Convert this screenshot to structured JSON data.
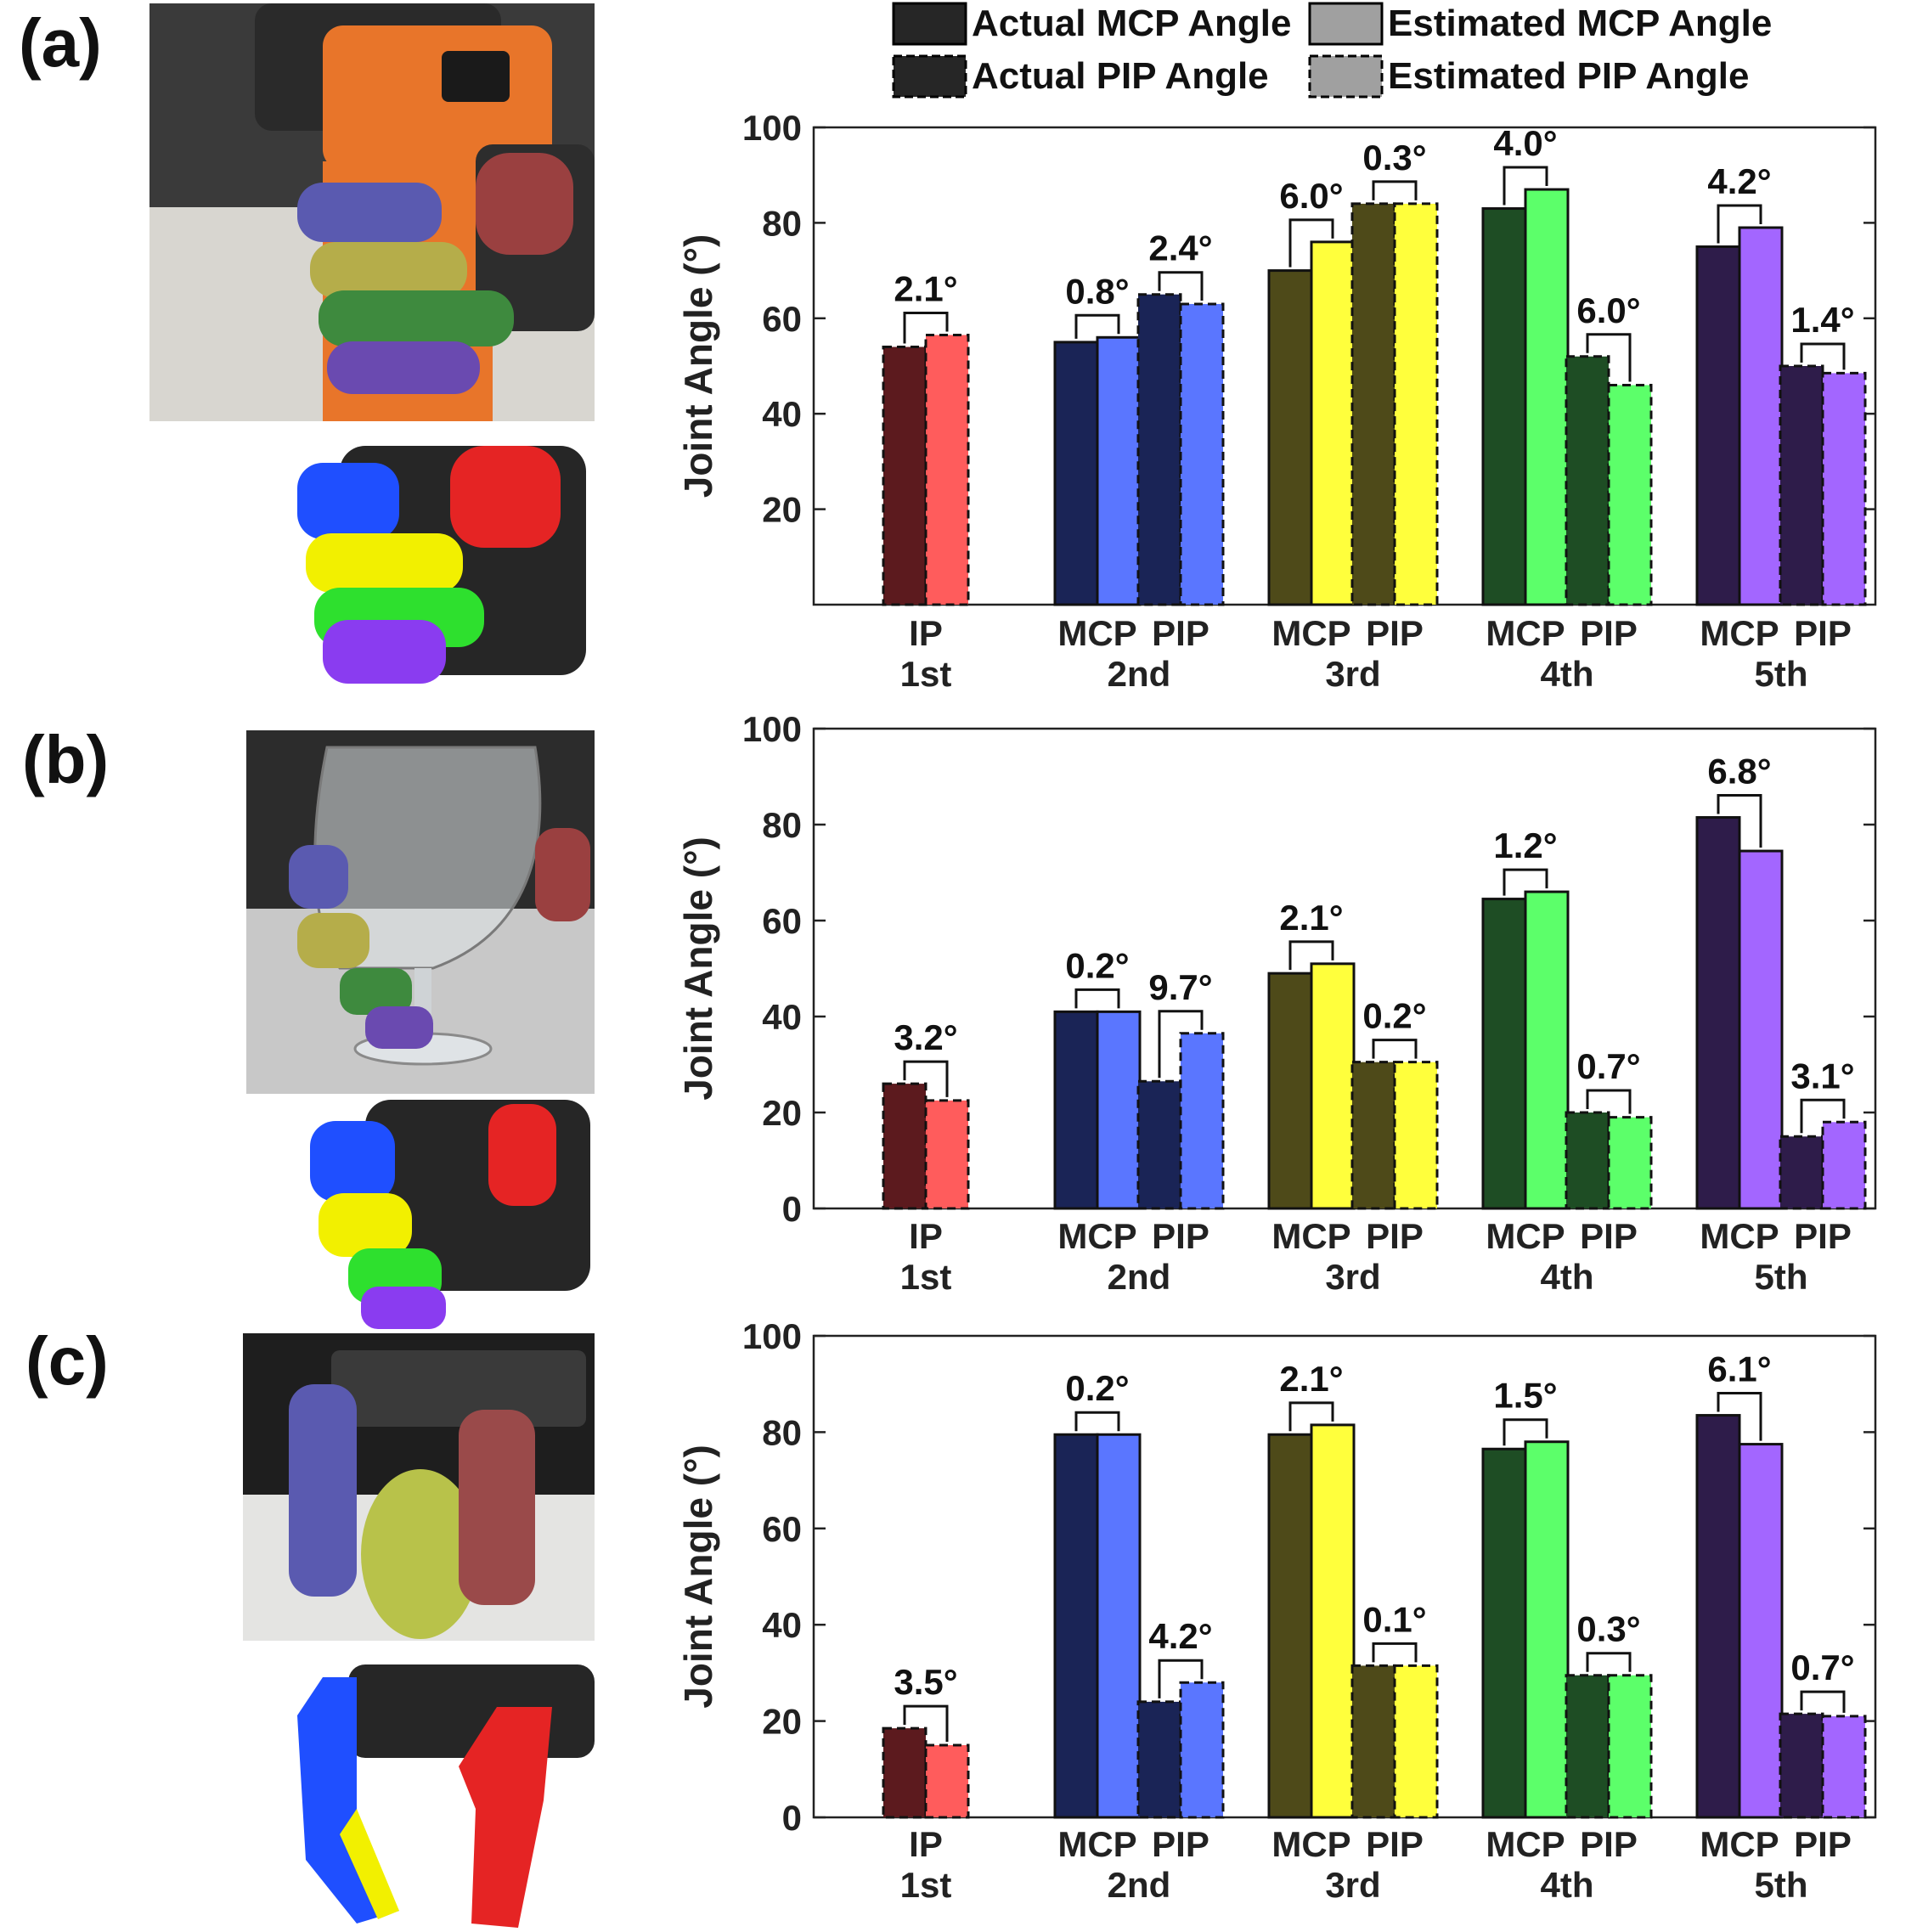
{
  "legend": {
    "actual_mcp": "Actual MCP Angle",
    "estimated_mcp": "Estimated MCP Angle",
    "actual_pip": "Actual PIP Angle",
    "estimated_pip": "Estimated PIP Angle"
  },
  "colors": {
    "first": {
      "actual": "#5c1a1e",
      "estimated": "#ff5c5c"
    },
    "second": {
      "actual": "#1a2456",
      "estimated": "#5a76ff"
    },
    "third": {
      "actual": "#4e4a19",
      "estimated": "#ffff3c"
    },
    "fourth": {
      "actual": "#1e4d24",
      "estimated": "#5cff6a"
    },
    "fifth": {
      "actual": "#2e1c4a",
      "estimated": "#a366ff"
    }
  },
  "photos": {
    "a": "drill-grasp-photo",
    "b": "wine-glass-grasp-photo",
    "c": "pear-grasp-photo"
  },
  "chart_data": [
    {
      "panel": "(a)",
      "type": "bar",
      "ylabel": "Joint Angle (°)",
      "ylim": [
        0,
        100
      ],
      "yticks": [
        20,
        40,
        60,
        80,
        100
      ],
      "groups": [
        {
          "finger": "1st",
          "joints": [
            {
              "joint": "IP",
              "type": "pip",
              "actual": 54,
              "estimated": 56.5,
              "error": "2.1°"
            }
          ]
        },
        {
          "finger": "2nd",
          "joints": [
            {
              "joint": "MCP",
              "type": "mcp",
              "actual": 55,
              "estimated": 56,
              "error": "0.8°"
            },
            {
              "joint": "PIP",
              "type": "pip",
              "actual": 65,
              "estimated": 63,
              "error": "2.4°"
            }
          ]
        },
        {
          "finger": "3rd",
          "joints": [
            {
              "joint": "MCP",
              "type": "mcp",
              "actual": 70,
              "estimated": 76,
              "error": "6.0°"
            },
            {
              "joint": "PIP",
              "type": "pip",
              "actual": 84,
              "estimated": 84,
              "error": "0.3°"
            }
          ]
        },
        {
          "finger": "4th",
          "joints": [
            {
              "joint": "MCP",
              "type": "mcp",
              "actual": 83,
              "estimated": 87,
              "error": "4.0°"
            },
            {
              "joint": "PIP",
              "type": "pip",
              "actual": 52,
              "estimated": 46,
              "error": "6.0°"
            }
          ]
        },
        {
          "finger": "5th",
          "joints": [
            {
              "joint": "MCP",
              "type": "mcp",
              "actual": 75,
              "estimated": 79,
              "error": "4.2°"
            },
            {
              "joint": "PIP",
              "type": "pip",
              "actual": 50,
              "estimated": 48.5,
              "error": "1.4°"
            }
          ]
        }
      ]
    },
    {
      "panel": "(b)",
      "type": "bar",
      "ylabel": "Joint Angle (°)",
      "ylim": [
        0,
        100
      ],
      "yticks": [
        0,
        20,
        40,
        60,
        80,
        100
      ],
      "groups": [
        {
          "finger": "1st",
          "joints": [
            {
              "joint": "IP",
              "type": "pip",
              "actual": 26,
              "estimated": 22.5,
              "error": "3.2°"
            }
          ]
        },
        {
          "finger": "2nd",
          "joints": [
            {
              "joint": "MCP",
              "type": "mcp",
              "actual": 41,
              "estimated": 41,
              "error": "0.2°"
            },
            {
              "joint": "PIP",
              "type": "pip",
              "actual": 26.5,
              "estimated": 36.5,
              "error": "9.7°"
            }
          ]
        },
        {
          "finger": "3rd",
          "joints": [
            {
              "joint": "MCP",
              "type": "mcp",
              "actual": 49,
              "estimated": 51,
              "error": "2.1°"
            },
            {
              "joint": "PIP",
              "type": "pip",
              "actual": 30.5,
              "estimated": 30.5,
              "error": "0.2°"
            }
          ]
        },
        {
          "finger": "4th",
          "joints": [
            {
              "joint": "MCP",
              "type": "mcp",
              "actual": 64.5,
              "estimated": 66,
              "error": "1.2°"
            },
            {
              "joint": "PIP",
              "type": "pip",
              "actual": 20,
              "estimated": 19,
              "error": "0.7°"
            }
          ]
        },
        {
          "finger": "5th",
          "joints": [
            {
              "joint": "MCP",
              "type": "mcp",
              "actual": 81.5,
              "estimated": 74.5,
              "error": "6.8°"
            },
            {
              "joint": "PIP",
              "type": "pip",
              "actual": 15,
              "estimated": 18,
              "error": "3.1°"
            }
          ]
        }
      ]
    },
    {
      "panel": "(c)",
      "type": "bar",
      "ylabel": "Joint Angle (°)",
      "ylim": [
        0,
        100
      ],
      "yticks": [
        0,
        20,
        40,
        60,
        80,
        100
      ],
      "groups": [
        {
          "finger": "1st",
          "joints": [
            {
              "joint": "IP",
              "type": "pip",
              "actual": 18.5,
              "estimated": 15,
              "error": "3.5°"
            }
          ]
        },
        {
          "finger": "2nd",
          "joints": [
            {
              "joint": "MCP",
              "type": "mcp",
              "actual": 79.5,
              "estimated": 79.5,
              "error": "0.2°"
            },
            {
              "joint": "PIP",
              "type": "pip",
              "actual": 24,
              "estimated": 28,
              "error": "4.2°"
            }
          ]
        },
        {
          "finger": "3rd",
          "joints": [
            {
              "joint": "MCP",
              "type": "mcp",
              "actual": 79.5,
              "estimated": 81.5,
              "error": "2.1°"
            },
            {
              "joint": "PIP",
              "type": "pip",
              "actual": 31.5,
              "estimated": 31.5,
              "error": "0.1°"
            }
          ]
        },
        {
          "finger": "4th",
          "joints": [
            {
              "joint": "MCP",
              "type": "mcp",
              "actual": 76.5,
              "estimated": 78,
              "error": "1.5°"
            },
            {
              "joint": "PIP",
              "type": "pip",
              "actual": 29.5,
              "estimated": 29.5,
              "error": "0.3°"
            }
          ]
        },
        {
          "finger": "5th",
          "joints": [
            {
              "joint": "MCP",
              "type": "mcp",
              "actual": 83.5,
              "estimated": 77.5,
              "error": "6.1°"
            },
            {
              "joint": "PIP",
              "type": "pip",
              "actual": 21.5,
              "estimated": 21,
              "error": "0.7°"
            }
          ]
        }
      ]
    }
  ]
}
